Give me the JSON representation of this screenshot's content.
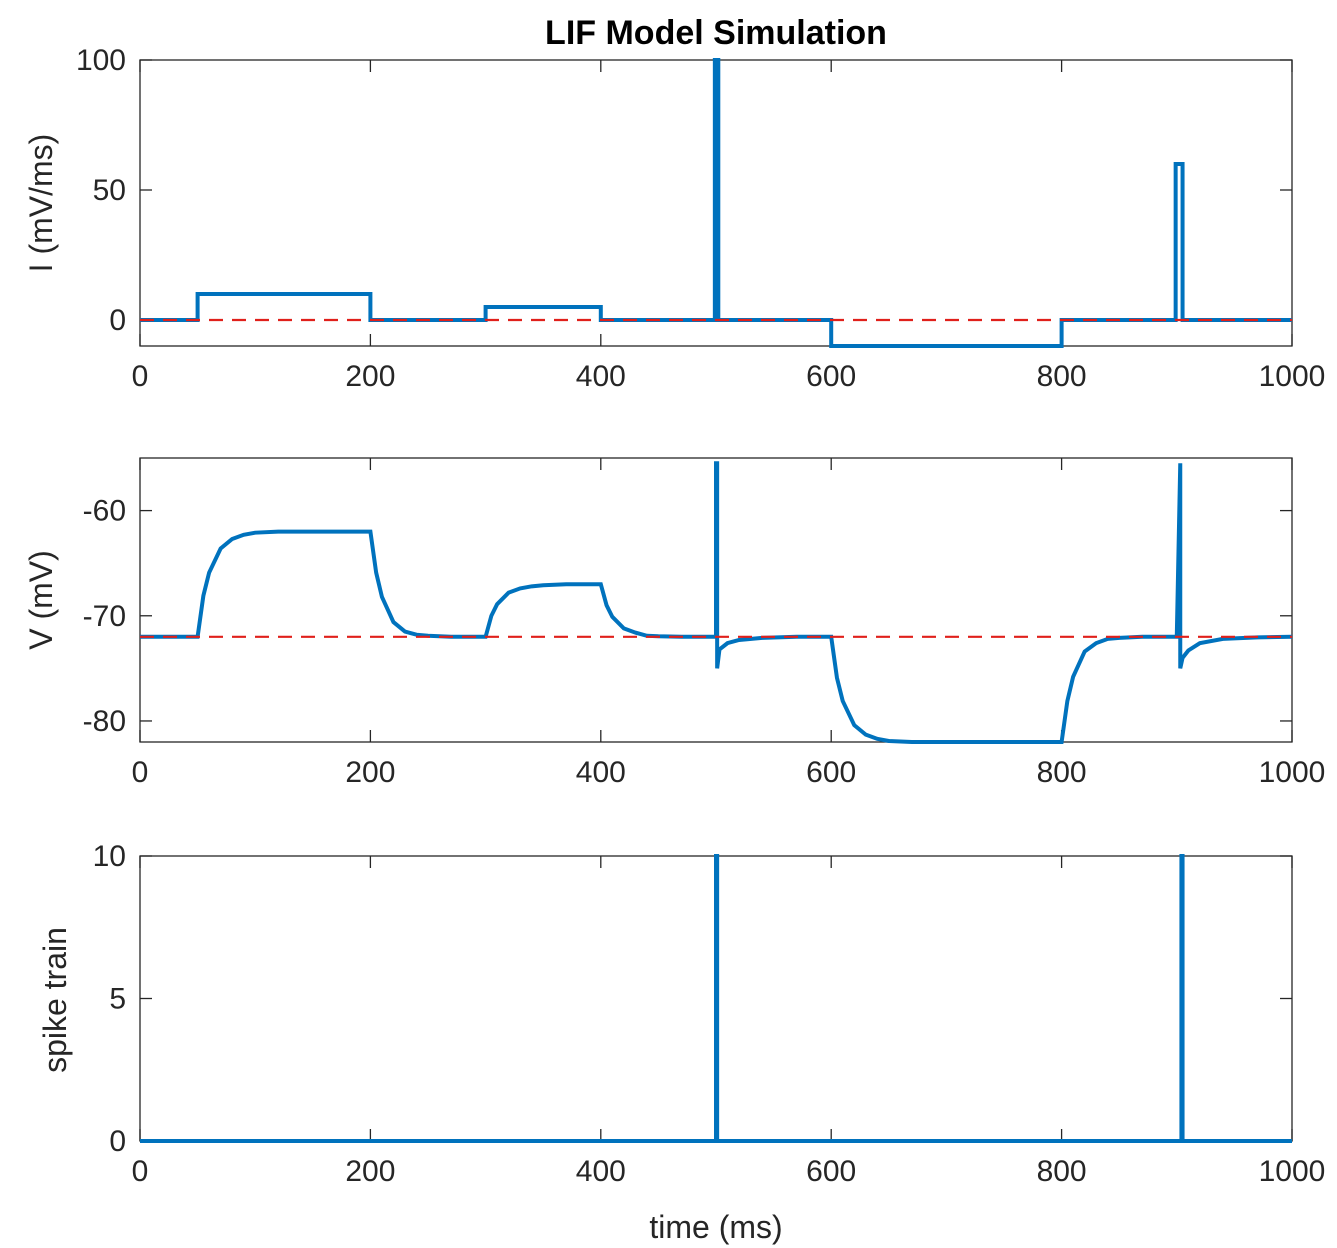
{
  "chart_data": [
    {
      "type": "line",
      "title": "LIF Model Simulation",
      "xlabel": "",
      "ylabel": "I (mV/ms)",
      "xlim": [
        0,
        1000
      ],
      "ylim": [
        -10,
        100
      ],
      "xticks": [
        "0",
        "200",
        "400",
        "600",
        "800",
        "1000"
      ],
      "yticks": [
        "0",
        "50",
        "100"
      ],
      "grid": false,
      "series": [
        {
          "color": "#0072BD",
          "x": [
            0,
            50,
            50,
            200,
            200,
            300,
            300,
            400,
            400,
            499,
            499,
            502,
            502,
            600,
            600,
            800,
            800,
            899,
            899,
            905,
            905,
            1000
          ],
          "y": [
            0,
            0,
            10,
            10,
            0,
            0,
            5,
            5,
            0,
            0,
            100,
            100,
            0,
            0,
            -10,
            -10,
            0,
            0,
            60,
            60,
            0,
            0
          ]
        }
      ],
      "reference_line": {
        "y": 0,
        "color": "#E0201B",
        "style": "dashed"
      }
    },
    {
      "type": "line",
      "title": "",
      "xlabel": "",
      "ylabel": "V (mV)",
      "xlim": [
        0,
        1000
      ],
      "ylim": [
        -82,
        -55
      ],
      "xticks": [
        "0",
        "200",
        "400",
        "600",
        "800",
        "1000"
      ],
      "yticks": [
        "-80",
        "-70",
        "-60"
      ],
      "grid": false,
      "series": [
        {
          "color": "#0072BD",
          "x": [
            0,
            50,
            55,
            60,
            70,
            80,
            90,
            100,
            120,
            150,
            200,
            205,
            210,
            220,
            230,
            240,
            250,
            270,
            300,
            305,
            310,
            320,
            330,
            340,
            350,
            370,
            400,
            405,
            410,
            420,
            430,
            440,
            450,
            470,
            500,
            500,
            501,
            501,
            503,
            510,
            520,
            540,
            570,
            600,
            605,
            610,
            620,
            630,
            640,
            650,
            670,
            700,
            750,
            800,
            805,
            810,
            820,
            830,
            840,
            850,
            870,
            900,
            900,
            903,
            903,
            905,
            910,
            920,
            940,
            970,
            1000
          ],
          "y": [
            -72,
            -72,
            -68.1,
            -65.9,
            -63.6,
            -62.7,
            -62.3,
            -62.1,
            -62.0,
            -62.0,
            -62.0,
            -65.9,
            -68.2,
            -70.6,
            -71.5,
            -71.8,
            -71.9,
            -72.0,
            -72.0,
            -70.0,
            -68.9,
            -67.8,
            -67.4,
            -67.2,
            -67.1,
            -67.0,
            -67.0,
            -69.0,
            -70.1,
            -71.2,
            -71.6,
            -71.9,
            -71.95,
            -72.0,
            -72.0,
            -55.5,
            -55.5,
            -75,
            -73.2,
            -72.6,
            -72.3,
            -72.1,
            -72.0,
            -72.0,
            -75.9,
            -78.1,
            -80.4,
            -81.3,
            -81.7,
            -81.9,
            -82.0,
            -82.0,
            -82.0,
            -82.0,
            -78.1,
            -75.8,
            -73.4,
            -72.6,
            -72.2,
            -72.1,
            -72.0,
            -72.0,
            -71.9,
            -55.5,
            -75,
            -74.0,
            -73.3,
            -72.6,
            -72.2,
            -72.05,
            -72.0
          ]
        }
      ],
      "reference_line": {
        "y": -72,
        "color": "#E0201B",
        "style": "dashed"
      }
    },
    {
      "type": "line",
      "title": "",
      "xlabel": "time (ms)",
      "ylabel": "spike train",
      "xlim": [
        0,
        1000
      ],
      "ylim": [
        0,
        10
      ],
      "xticks": [
        "0",
        "200",
        "400",
        "600",
        "800",
        "1000"
      ],
      "yticks": [
        "0",
        "5",
        "10"
      ],
      "grid": false,
      "series": [
        {
          "color": "#0072BD",
          "x": [
            0,
            500,
            500,
            501,
            501,
            904,
            904,
            905,
            905,
            1000
          ],
          "y": [
            0,
            0,
            10,
            10,
            0,
            0,
            10,
            10,
            0,
            0
          ]
        }
      ]
    }
  ]
}
